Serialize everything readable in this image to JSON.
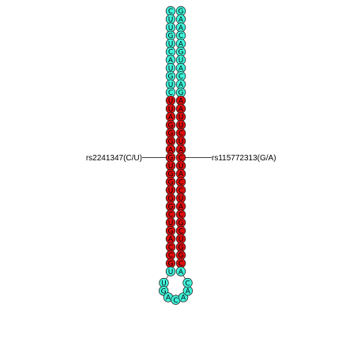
{
  "diagram": {
    "type": "rna-hairpin",
    "colors": {
      "unpaired": "#3ff5dc",
      "paired_region": "#e00e0e",
      "outline": "#222222"
    },
    "left_strand": [
      "C",
      "U",
      "U",
      "G",
      "U",
      "C",
      "A",
      "U",
      "G",
      "U",
      "C",
      "U",
      "U",
      "A",
      "G",
      "G",
      "G",
      "A",
      "G",
      "U",
      "G",
      "G",
      "U",
      "G",
      "G",
      "C",
      "U",
      "G",
      "A",
      "C",
      "C",
      "G",
      "U"
    ],
    "right_strand": [
      "G",
      "A",
      "A",
      "C",
      "A",
      "G",
      "U",
      "A",
      "C",
      "A",
      "G",
      "A",
      "A",
      "U",
      "U",
      "C",
      "U",
      "A",
      "C",
      "U",
      "A",
      "C",
      "C",
      "U",
      "A",
      "C",
      "G",
      "C",
      "U",
      "G",
      "G",
      "C",
      "A"
    ],
    "color_split_row": 11,
    "loop": [
      "U",
      "G",
      "A",
      "C",
      "A",
      "A",
      "C"
    ],
    "snps": {
      "left": {
        "label": "rs2241347(C/U)",
        "row": 18
      },
      "right": {
        "label": "rs115772313(G/A)",
        "row": 18
      }
    }
  }
}
